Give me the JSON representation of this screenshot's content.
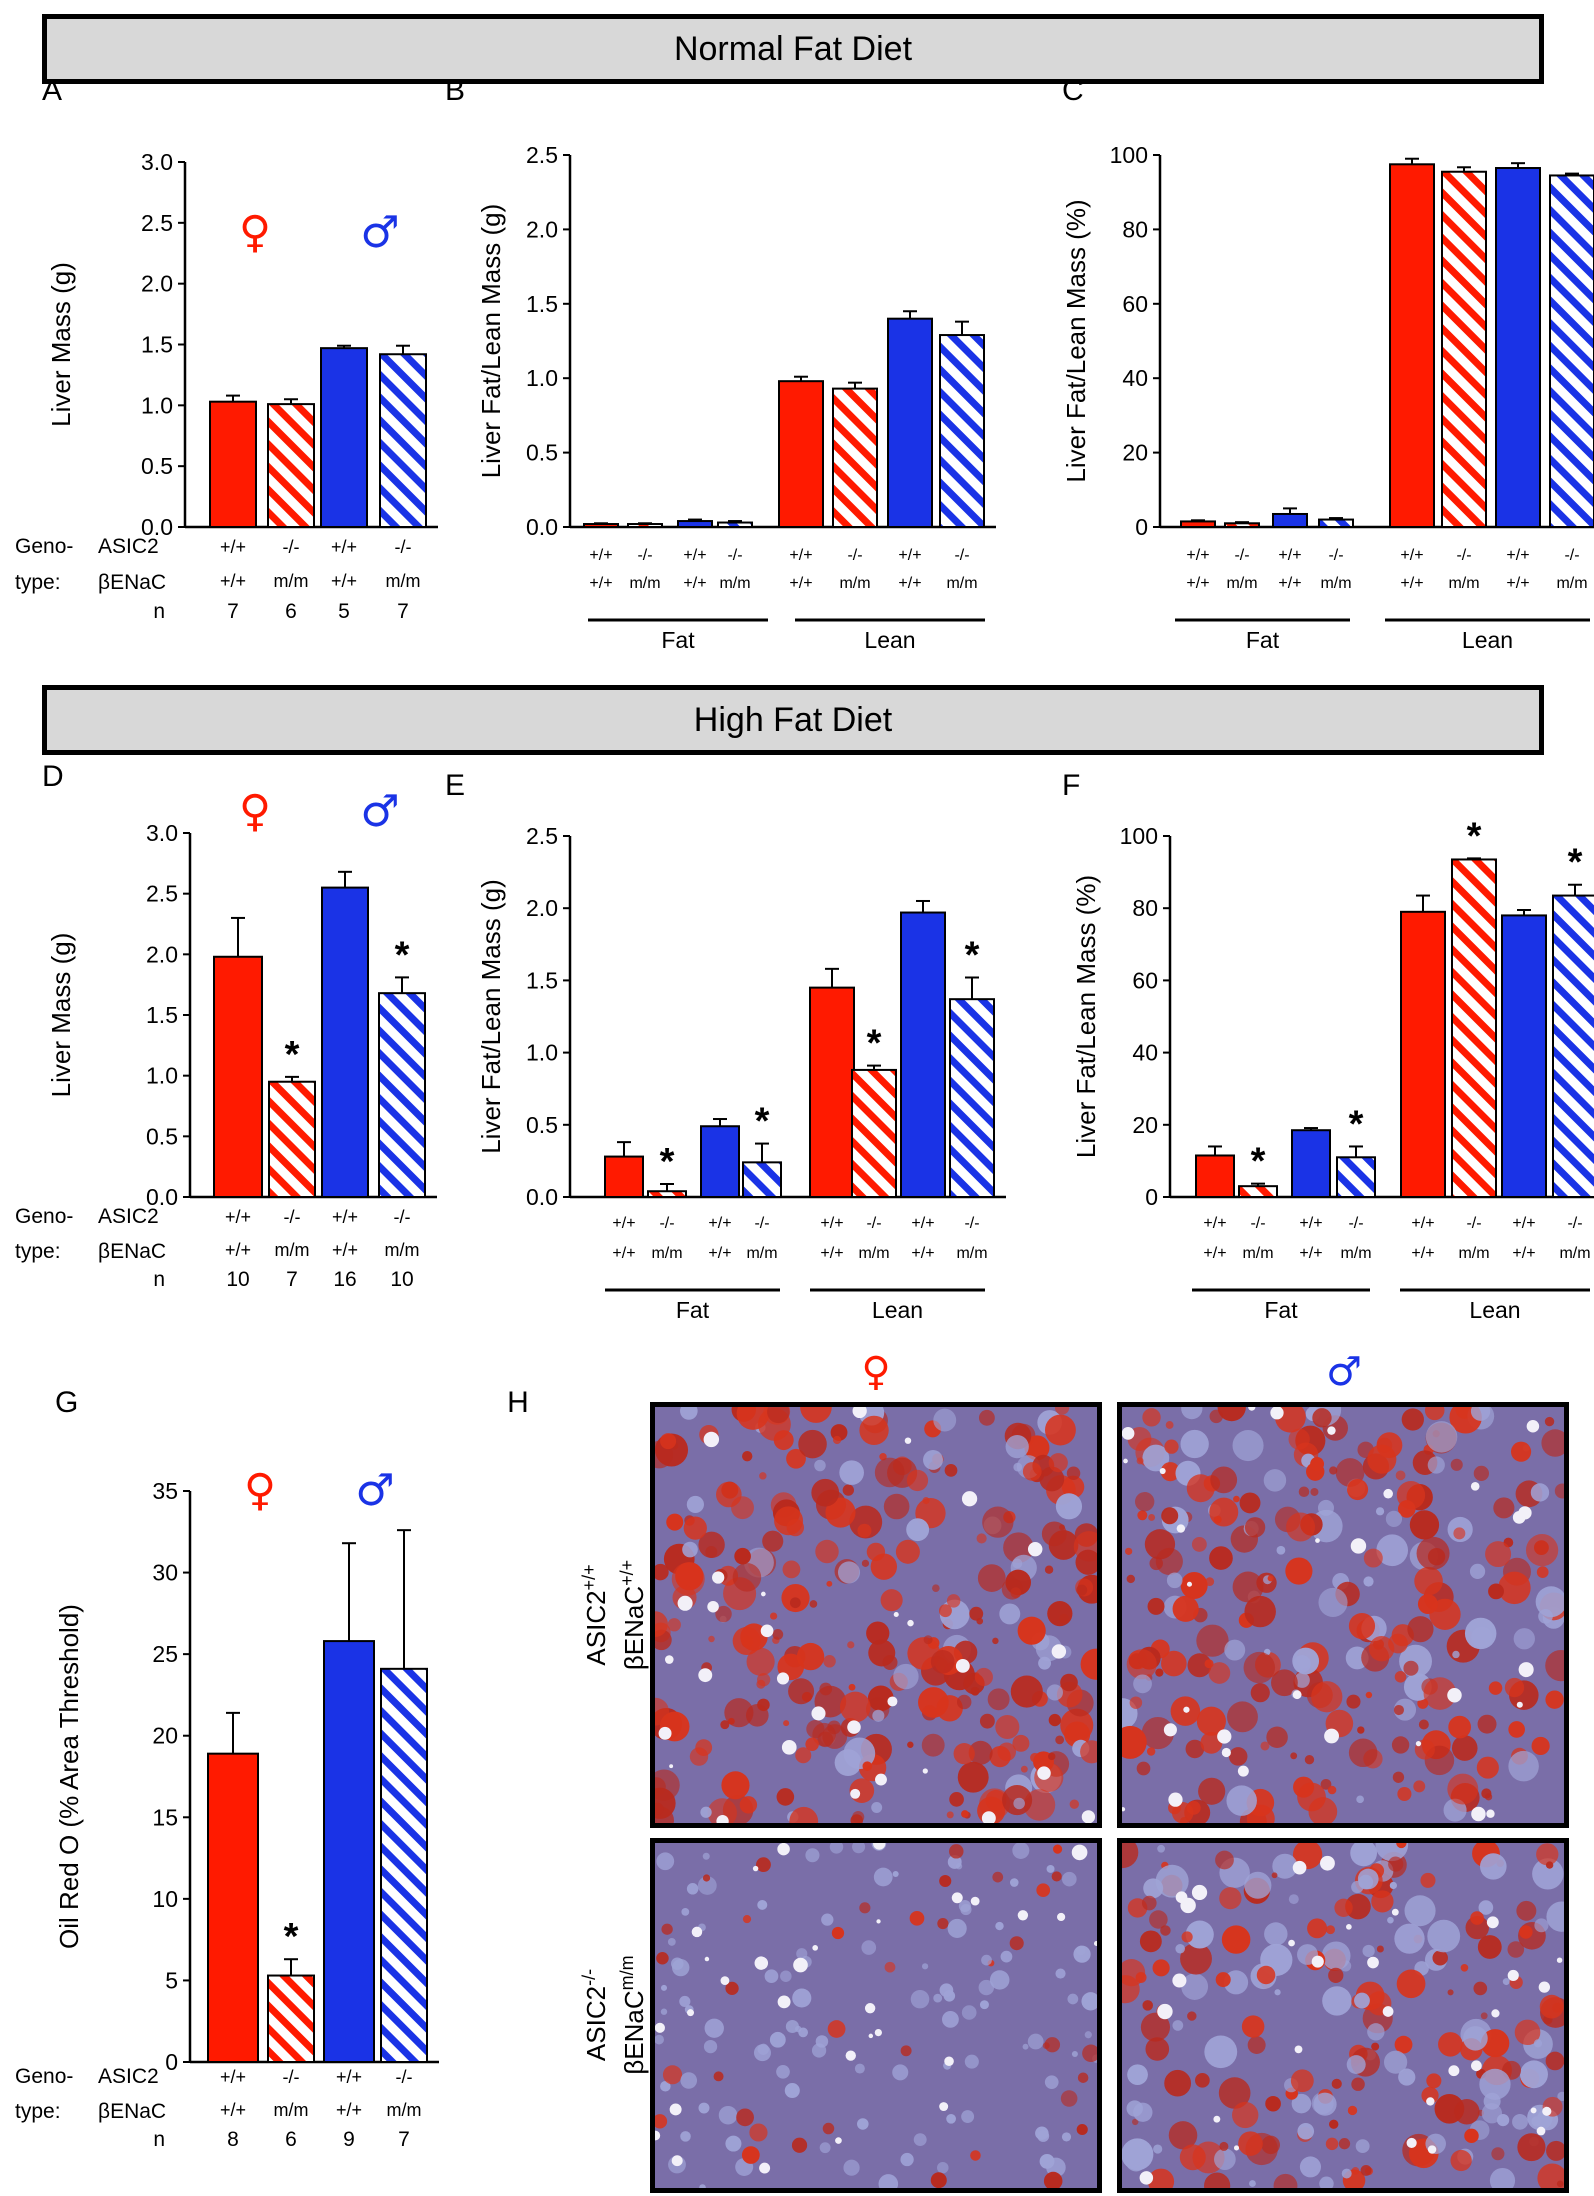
{
  "banners": {
    "normal": "Normal Fat Diet",
    "high": "High Fat Diet"
  },
  "colors": {
    "female": "#ff1a00",
    "male": "#1a33e6",
    "axis": "#000000"
  },
  "symbols": {
    "female": "♀",
    "male": "♂"
  },
  "genotype_labels": {
    "geno": "Geno-",
    "type": "type:",
    "asic2": "ASIC2",
    "benac": "βENaC",
    "n": "n"
  },
  "chart_data": [
    {
      "panel": "A",
      "type": "bar",
      "ylabel": "Liver Mass (g)",
      "ylim": [
        0,
        3.0
      ],
      "yticks": [
        "0.0",
        "0.5",
        "1.0",
        "1.5",
        "2.0",
        "2.5",
        "3.0"
      ],
      "bars": [
        {
          "sex": "female",
          "pattern": "solid",
          "value": 1.03,
          "err": 0.05,
          "star": false
        },
        {
          "sex": "female",
          "pattern": "hatched",
          "value": 1.01,
          "err": 0.04,
          "star": false
        },
        {
          "sex": "male",
          "pattern": "solid",
          "value": 1.47,
          "err": 0.02,
          "star": false
        },
        {
          "sex": "male",
          "pattern": "hatched",
          "value": 1.42,
          "err": 0.07,
          "star": false
        }
      ],
      "asic2": [
        "+/+",
        "-/-",
        "+/+",
        "-/-"
      ],
      "benac": [
        "+/+",
        "m/m",
        "+/+",
        "m/m"
      ],
      "n": [
        "7",
        "6",
        "5",
        "7"
      ],
      "show_sex_symbols": true
    },
    {
      "panel": "B",
      "type": "bar",
      "ylabel": "Liver Fat/Lean Mass (g)",
      "ylim": [
        0,
        2.5
      ],
      "yticks": [
        "0.0",
        "0.5",
        "1.0",
        "1.5",
        "2.0",
        "2.5"
      ],
      "groups": [
        "Fat",
        "Lean"
      ],
      "bars": [
        {
          "sex": "female",
          "pattern": "solid",
          "value": 0.02,
          "err": 0.005,
          "star": false
        },
        {
          "sex": "female",
          "pattern": "hatched",
          "value": 0.02,
          "err": 0.005,
          "star": false
        },
        {
          "sex": "male",
          "pattern": "solid",
          "value": 0.04,
          "err": 0.01,
          "star": false
        },
        {
          "sex": "male",
          "pattern": "hatched",
          "value": 0.03,
          "err": 0.01,
          "star": false
        },
        {
          "sex": "female",
          "pattern": "solid",
          "value": 0.98,
          "err": 0.03,
          "star": false
        },
        {
          "sex": "female",
          "pattern": "hatched",
          "value": 0.93,
          "err": 0.04,
          "star": false
        },
        {
          "sex": "male",
          "pattern": "solid",
          "value": 1.4,
          "err": 0.05,
          "star": false
        },
        {
          "sex": "male",
          "pattern": "hatched",
          "value": 1.29,
          "err": 0.09,
          "star": false
        }
      ],
      "asic2": [
        "+/+",
        "-/-",
        "+/+",
        "-/-",
        "+/+",
        "-/-",
        "+/+",
        "-/-"
      ],
      "benac": [
        "+/+",
        "m/m",
        "+/+",
        "m/m",
        "+/+",
        "m/m",
        "+/+",
        "m/m"
      ]
    },
    {
      "panel": "C",
      "type": "bar",
      "ylabel": "Liver Fat/Lean Mass (%)",
      "ylim": [
        0,
        100
      ],
      "yticks": [
        "0",
        "20",
        "40",
        "60",
        "80",
        "100"
      ],
      "groups": [
        "Fat",
        "Lean"
      ],
      "bars": [
        {
          "sex": "female",
          "pattern": "solid",
          "value": 1.5,
          "err": 0.3,
          "star": false
        },
        {
          "sex": "female",
          "pattern": "hatched",
          "value": 1.0,
          "err": 0.3,
          "star": false
        },
        {
          "sex": "male",
          "pattern": "solid",
          "value": 3.5,
          "err": 1.5,
          "star": false
        },
        {
          "sex": "male",
          "pattern": "hatched",
          "value": 2.0,
          "err": 0.4,
          "star": false
        },
        {
          "sex": "female",
          "pattern": "solid",
          "value": 97.5,
          "err": 1.5,
          "star": false
        },
        {
          "sex": "female",
          "pattern": "hatched",
          "value": 95.5,
          "err": 1.2,
          "star": false
        },
        {
          "sex": "male",
          "pattern": "solid",
          "value": 96.5,
          "err": 1.3,
          "star": false
        },
        {
          "sex": "male",
          "pattern": "hatched",
          "value": 94.5,
          "err": 0.5,
          "star": false
        }
      ],
      "asic2": [
        "+/+",
        "-/-",
        "+/+",
        "-/-",
        "+/+",
        "-/-",
        "+/+",
        "-/-"
      ],
      "benac": [
        "+/+",
        "m/m",
        "+/+",
        "m/m",
        "+/+",
        "m/m",
        "+/+",
        "m/m"
      ]
    },
    {
      "panel": "D",
      "type": "bar",
      "ylabel": "Liver Mass (g)",
      "ylim": [
        0,
        3.0
      ],
      "yticks": [
        "0.0",
        "0.5",
        "1.0",
        "1.5",
        "2.0",
        "2.5",
        "3.0"
      ],
      "bars": [
        {
          "sex": "female",
          "pattern": "solid",
          "value": 1.98,
          "err": 0.32,
          "star": false
        },
        {
          "sex": "female",
          "pattern": "hatched",
          "value": 0.95,
          "err": 0.04,
          "star": true
        },
        {
          "sex": "male",
          "pattern": "solid",
          "value": 2.55,
          "err": 0.13,
          "star": false
        },
        {
          "sex": "male",
          "pattern": "hatched",
          "value": 1.68,
          "err": 0.13,
          "star": true
        }
      ],
      "asic2": [
        "+/+",
        "-/-",
        "+/+",
        "-/-"
      ],
      "benac": [
        "+/+",
        "m/m",
        "+/+",
        "m/m"
      ],
      "n": [
        "10",
        "7",
        "16",
        "10"
      ],
      "show_sex_symbols": true
    },
    {
      "panel": "E",
      "type": "bar",
      "ylabel": "Liver Fat/Lean Mass (g)",
      "ylim": [
        0,
        2.5
      ],
      "yticks": [
        "0.0",
        "0.5",
        "1.0",
        "1.5",
        "2.0",
        "2.5"
      ],
      "groups": [
        "Fat",
        "Lean"
      ],
      "bars": [
        {
          "sex": "female",
          "pattern": "solid",
          "value": 0.28,
          "err": 0.1,
          "star": false
        },
        {
          "sex": "female",
          "pattern": "hatched",
          "value": 0.04,
          "err": 0.05,
          "star": true
        },
        {
          "sex": "male",
          "pattern": "solid",
          "value": 0.49,
          "err": 0.05,
          "star": false
        },
        {
          "sex": "male",
          "pattern": "hatched",
          "value": 0.24,
          "err": 0.13,
          "star": true
        },
        {
          "sex": "female",
          "pattern": "solid",
          "value": 1.45,
          "err": 0.13,
          "star": false
        },
        {
          "sex": "female",
          "pattern": "hatched",
          "value": 0.88,
          "err": 0.03,
          "star": true
        },
        {
          "sex": "male",
          "pattern": "solid",
          "value": 1.97,
          "err": 0.08,
          "star": false
        },
        {
          "sex": "male",
          "pattern": "hatched",
          "value": 1.37,
          "err": 0.15,
          "star": true
        }
      ],
      "asic2": [
        "+/+",
        "-/-",
        "+/+",
        "-/-",
        "+/+",
        "-/-",
        "+/+",
        "-/-"
      ],
      "benac": [
        "+/+",
        "m/m",
        "+/+",
        "m/m",
        "+/+",
        "m/m",
        "+/+",
        "m/m"
      ]
    },
    {
      "panel": "F",
      "type": "bar",
      "ylabel": "Liver Fat/Lean Mass (%)",
      "ylim": [
        0,
        100
      ],
      "yticks": [
        "0",
        "20",
        "40",
        "60",
        "80",
        "100"
      ],
      "groups": [
        "Fat",
        "Lean"
      ],
      "bars": [
        {
          "sex": "female",
          "pattern": "solid",
          "value": 11.5,
          "err": 2.5,
          "star": false
        },
        {
          "sex": "female",
          "pattern": "hatched",
          "value": 3.0,
          "err": 0.7,
          "star": true
        },
        {
          "sex": "male",
          "pattern": "solid",
          "value": 18.5,
          "err": 0.6,
          "star": false
        },
        {
          "sex": "male",
          "pattern": "hatched",
          "value": 11.0,
          "err": 3.0,
          "star": true
        },
        {
          "sex": "female",
          "pattern": "solid",
          "value": 79.0,
          "err": 4.5,
          "star": false
        },
        {
          "sex": "female",
          "pattern": "hatched",
          "value": 93.5,
          "err": 0.3,
          "star": true
        },
        {
          "sex": "male",
          "pattern": "solid",
          "value": 78.0,
          "err": 1.5,
          "star": false
        },
        {
          "sex": "male",
          "pattern": "hatched",
          "value": 83.5,
          "err": 3.0,
          "star": true
        }
      ],
      "asic2": [
        "+/+",
        "-/-",
        "+/+",
        "-/-",
        "+/+",
        "-/-",
        "+/+",
        "-/-"
      ],
      "benac": [
        "+/+",
        "m/m",
        "+/+",
        "m/m",
        "+/+",
        "m/m",
        "+/+",
        "m/m"
      ]
    },
    {
      "panel": "G",
      "type": "bar",
      "ylabel": "Oil Red O (% Area Threshold)",
      "ylim": [
        0,
        35
      ],
      "yticks": [
        "0",
        "5",
        "10",
        "15",
        "20",
        "25",
        "30",
        "35"
      ],
      "bars": [
        {
          "sex": "female",
          "pattern": "solid",
          "value": 18.9,
          "err": 2.5,
          "star": false
        },
        {
          "sex": "female",
          "pattern": "hatched",
          "value": 5.3,
          "err": 1.0,
          "star": true
        },
        {
          "sex": "male",
          "pattern": "solid",
          "value": 25.8,
          "err": 6.0,
          "star": false
        },
        {
          "sex": "male",
          "pattern": "hatched",
          "value": 24.1,
          "err": 8.5,
          "star": false
        }
      ],
      "asic2": [
        "+/+",
        "-/-",
        "+/+",
        "-/-"
      ],
      "benac": [
        "+/+",
        "m/m",
        "+/+",
        "m/m"
      ],
      "n": [
        "8",
        "6",
        "9",
        "7"
      ],
      "show_sex_symbols": true
    }
  ],
  "panel_h": {
    "letter": "H",
    "row_labels": [
      {
        "line1": "ASIC2",
        "sup1": "+/+",
        "line2": "βENaC",
        "sup2": "+/+"
      },
      {
        "line1": "ASIC2",
        "sup1": "-/-",
        "line2": "βENaC",
        "sup2": "m/m"
      }
    ],
    "column_symbols": [
      "♀",
      "♂"
    ],
    "images": [
      {
        "name": "female-wildtype-micrograph",
        "stain_level": 0.85
      },
      {
        "name": "male-wildtype-micrograph",
        "stain_level": 0.75
      },
      {
        "name": "female-knockout-micrograph",
        "stain_level": 0.3
      },
      {
        "name": "male-knockout-micrograph",
        "stain_level": 0.6
      }
    ]
  }
}
